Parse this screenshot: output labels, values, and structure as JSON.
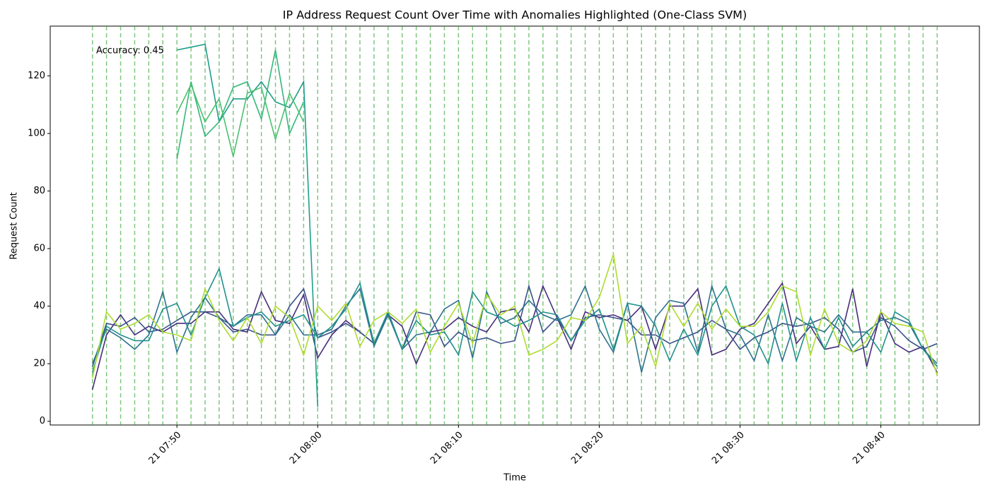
{
  "chart_data": {
    "type": "line",
    "title": "IP Address Request Count Over Time with Anomalies Highlighted (One-Class SVM)",
    "x_label": "Time",
    "y_label": "Request Count",
    "annotation": "Accuracy: 0.45",
    "x": [
      "21 07:44",
      "21 07:45",
      "21 07:46",
      "21 07:47",
      "21 07:48",
      "21 07:49",
      "21 07:50",
      "21 07:51",
      "21 07:52",
      "21 07:53",
      "21 07:54",
      "21 07:55",
      "21 07:56",
      "21 07:57",
      "21 07:58",
      "21 07:59",
      "21 08:00",
      "21 08:01",
      "21 08:02",
      "21 08:03",
      "21 08:04",
      "21 08:05",
      "21 08:06",
      "21 08:07",
      "21 08:08",
      "21 08:09",
      "21 08:10",
      "21 08:11",
      "21 08:12",
      "21 08:13",
      "21 08:14",
      "21 08:15",
      "21 08:16",
      "21 08:17",
      "21 08:18",
      "21 08:19",
      "21 08:20",
      "21 08:21",
      "21 08:22",
      "21 08:23",
      "21 08:24",
      "21 08:25",
      "21 08:26",
      "21 08:27",
      "21 08:28",
      "21 08:29",
      "21 08:30",
      "21 08:31",
      "21 08:32",
      "21 08:33",
      "21 08:34",
      "21 08:35",
      "21 08:36",
      "21 08:37",
      "21 08:38",
      "21 08:39",
      "21 08:40",
      "21 08:41",
      "21 08:42",
      "21 08:43",
      "21 08:44"
    ],
    "anomalies": [
      "21 07:44",
      "21 07:45",
      "21 07:46",
      "21 07:47",
      "21 07:48",
      "21 07:49",
      "21 07:50",
      "21 07:51",
      "21 07:52",
      "21 07:53",
      "21 07:54",
      "21 07:55",
      "21 07:56",
      "21 07:57",
      "21 07:58",
      "21 07:59",
      "21 08:00",
      "21 08:01",
      "21 08:02",
      "21 08:03",
      "21 08:04",
      "21 08:05",
      "21 08:06",
      "21 08:07",
      "21 08:08",
      "21 08:09",
      "21 08:10",
      "21 08:11",
      "21 08:12",
      "21 08:13",
      "21 08:14",
      "21 08:15",
      "21 08:16",
      "21 08:17",
      "21 08:18",
      "21 08:19",
      "21 08:20",
      "21 08:21",
      "21 08:22",
      "21 08:23",
      "21 08:24",
      "21 08:25",
      "21 08:26",
      "21 08:27",
      "21 08:28",
      "21 08:29",
      "21 08:30",
      "21 08:31",
      "21 08:32",
      "21 08:33",
      "21 08:34",
      "21 08:35",
      "21 08:36",
      "21 08:37",
      "21 08:38",
      "21 08:39",
      "21 08:40",
      "21 08:41",
      "21 08:42",
      "21 08:43",
      "21 08:44"
    ],
    "anomaly_color": "#2ca02c",
    "series": [
      {
        "color": "#472d7b",
        "values": [
          11,
          30,
          37,
          30,
          33,
          31,
          34,
          34,
          38,
          38,
          32,
          31,
          45,
          35,
          34,
          44,
          22,
          30,
          35,
          31,
          27,
          37,
          33,
          20,
          31,
          32,
          36,
          33,
          31,
          38,
          39,
          31,
          47,
          36,
          25,
          38,
          36,
          37,
          35,
          40,
          25,
          40,
          40,
          46,
          23,
          25,
          32,
          34,
          41,
          48,
          27,
          33,
          25,
          26,
          46,
          19,
          38,
          27,
          24,
          26,
          17
        ]
      },
      {
        "color": "#3b528b",
        "values": [
          19,
          34,
          33,
          36,
          31,
          32,
          35,
          38,
          38,
          36,
          31,
          32,
          30,
          30,
          40,
          46,
          29,
          31,
          34,
          31,
          27,
          38,
          25,
          38,
          37,
          26,
          31,
          28,
          29,
          27,
          28,
          47,
          31,
          36,
          28,
          36,
          37,
          36,
          35,
          30,
          30,
          27,
          29,
          31,
          35,
          32,
          25,
          29,
          31,
          34,
          33,
          34,
          36,
          32,
          24,
          26,
          36,
          33,
          28,
          25,
          27
        ]
      },
      {
        "color": "#2c728e",
        "values": [
          20,
          32,
          29,
          25,
          30,
          45,
          24,
          36,
          43,
          36,
          33,
          37,
          37,
          30,
          37,
          30,
          30,
          32,
          40,
          46,
          26,
          37,
          25,
          30,
          31,
          39,
          42,
          22,
          45,
          34,
          36,
          42,
          37,
          35,
          37,
          47,
          32,
          24,
          41,
          17,
          36,
          42,
          41,
          24,
          47,
          32,
          30,
          21,
          37,
          21,
          36,
          33,
          31,
          37,
          31,
          31,
          35,
          36,
          34,
          25,
          20
        ]
      },
      {
        "color": "#21918c",
        "values": [
          17,
          33,
          30,
          28,
          28,
          39,
          41,
          30,
          43,
          53,
          33,
          36,
          38,
          33,
          35,
          37,
          29,
          33,
          39,
          48,
          27,
          38,
          25,
          35,
          30,
          31,
          23,
          45,
          38,
          36,
          33,
          35,
          38,
          37,
          28,
          35,
          39,
          25,
          41,
          40,
          33,
          21,
          32,
          23,
          40,
          47,
          33,
          30,
          20,
          41,
          21,
          36,
          25,
          36,
          26,
          31,
          24,
          38,
          35,
          25,
          19
        ]
      },
      {
        "color": "#1f9e89",
        "values": [
          null,
          null,
          null,
          null,
          null,
          null,
          129,
          130,
          131,
          104,
          112,
          112,
          118,
          111,
          109,
          118,
          5,
          null,
          null,
          null,
          null,
          null,
          null,
          null,
          null,
          null,
          null,
          null,
          null,
          null,
          null,
          null,
          null,
          null,
          null,
          null,
          null,
          null,
          null,
          null,
          null,
          null,
          null,
          null,
          null,
          null,
          null,
          null,
          null,
          null,
          null,
          null,
          null,
          null,
          null,
          null,
          null,
          null,
          null,
          null,
          null
        ]
      },
      {
        "color": "#35b779",
        "values": [
          null,
          null,
          null,
          null,
          null,
          null,
          91,
          118,
          99,
          104,
          116,
          118,
          105,
          129,
          100,
          111,
          null,
          null,
          null,
          null,
          null,
          null,
          null,
          null,
          null,
          null,
          null,
          null,
          null,
          null,
          null,
          null,
          null,
          null,
          null,
          null,
          null,
          null,
          null,
          null,
          null,
          null,
          null,
          null,
          null,
          null,
          null,
          null,
          null,
          null,
          null,
          null,
          null,
          null,
          null,
          null,
          null,
          null,
          null,
          null,
          null
        ]
      },
      {
        "color": "#4ac16d",
        "values": [
          null,
          null,
          null,
          null,
          null,
          null,
          107,
          117,
          104,
          112,
          92,
          114,
          116,
          98,
          114,
          104,
          null,
          null,
          null,
          null,
          null,
          null,
          null,
          null,
          null,
          null,
          null,
          null,
          null,
          null,
          null,
          null,
          null,
          null,
          null,
          null,
          null,
          null,
          null,
          null,
          null,
          null,
          null,
          null,
          null,
          null,
          null,
          null,
          null,
          null,
          null,
          null,
          null,
          null,
          null,
          null,
          null,
          null,
          null,
          null,
          null
        ]
      },
      {
        "color": "#addc30",
        "values": [
          15,
          38,
          32,
          34,
          37,
          31,
          30,
          28,
          46,
          35,
          28,
          36,
          27,
          40,
          36,
          23,
          40,
          35,
          41,
          26,
          35,
          38,
          34,
          39,
          24,
          33,
          41,
          27,
          44,
          37,
          40,
          23,
          25,
          28,
          36,
          35,
          43,
          58,
          27,
          33,
          19,
          41,
          33,
          41,
          32,
          39,
          33,
          33,
          38,
          47,
          45,
          23,
          39,
          27,
          24,
          28,
          38,
          34,
          33,
          31,
          16
        ]
      }
    ],
    "xlim": [
      "21 07:41",
      "21 08:47"
    ],
    "xticks": [
      "21 07:50",
      "21 08:00",
      "21 08:10",
      "21 08:20",
      "21 08:30",
      "21 08:40"
    ],
    "ylim": [
      -1.3,
      137.3
    ],
    "yticks": [
      0,
      20,
      40,
      60,
      80,
      100,
      120
    ]
  }
}
